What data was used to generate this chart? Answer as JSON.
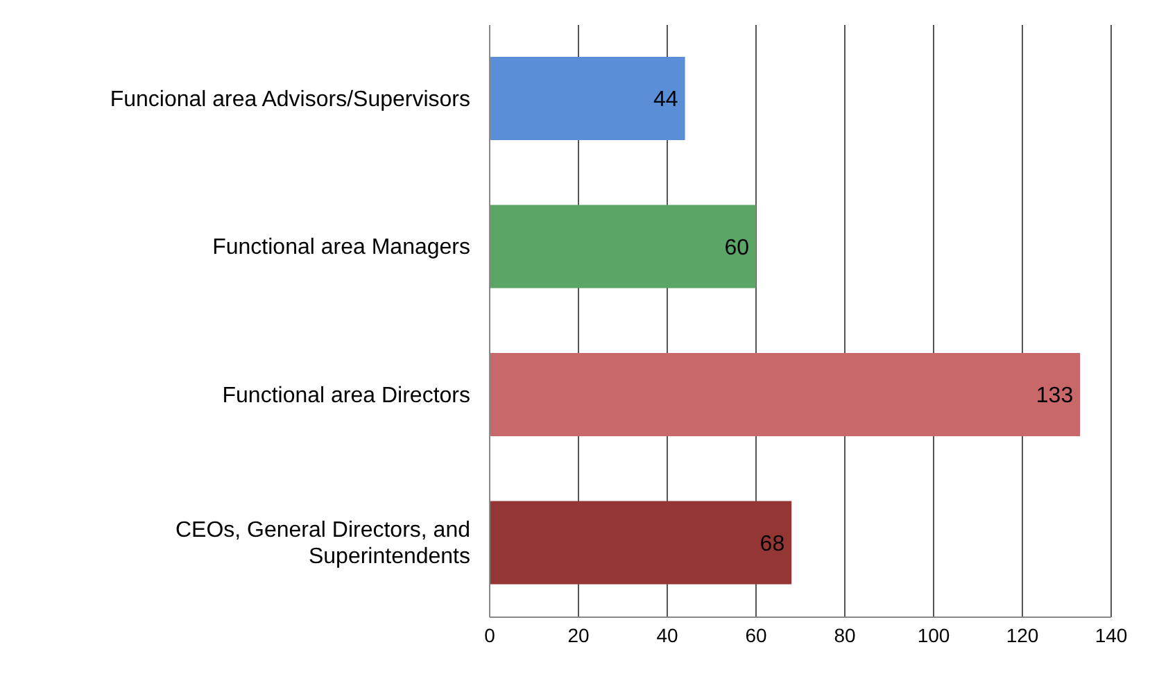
{
  "chart_data": {
    "type": "bar",
    "orientation": "horizontal",
    "categories": [
      "Funcional area Advisors/Supervisors",
      "Functional area Managers",
      "Functional area Directors",
      "CEOs, General Directors, and Superintendents"
    ],
    "values": [
      44,
      60,
      133,
      68
    ],
    "colors": [
      "#5a8fd8",
      "#5ba566",
      "#c8686b",
      "#943634"
    ],
    "xlim": [
      0,
      140
    ],
    "xticks": [
      0,
      20,
      40,
      60,
      80,
      100,
      120,
      140
    ],
    "grid": "x",
    "data_labels": true
  }
}
